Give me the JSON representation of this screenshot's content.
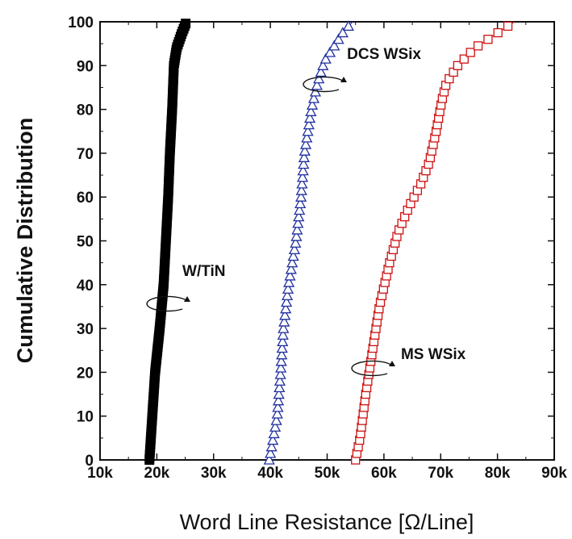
{
  "chart_data": {
    "type": "scatter",
    "title": "",
    "xlabel": "Word Line Resistance [Ω/Line]",
    "ylabel": "Cumulative Distribution",
    "xlim": [
      10000,
      90000
    ],
    "ylim": [
      0,
      100
    ],
    "x_ticks": [
      10000,
      20000,
      30000,
      40000,
      50000,
      60000,
      70000,
      80000,
      90000
    ],
    "x_tick_labels": [
      "10k",
      "20k",
      "30k",
      "40k",
      "50k",
      "60k",
      "70k",
      "80k",
      "90k"
    ],
    "y_ticks": [
      0,
      10,
      20,
      30,
      40,
      50,
      60,
      70,
      80,
      90,
      100
    ],
    "y_tick_labels": [
      "0",
      "10",
      "20",
      "30",
      "40",
      "50",
      "60",
      "70",
      "80",
      "90",
      "100"
    ],
    "grid": false,
    "legend": "none",
    "series": [
      {
        "marker": "filled-square",
        "color": "#000000",
        "points": [
          [
            18700,
            0
          ],
          [
            19200,
            10
          ],
          [
            19700,
            20
          ],
          [
            20500,
            30
          ],
          [
            21200,
            40
          ],
          [
            21600,
            50
          ],
          [
            22000,
            60
          ],
          [
            22300,
            70
          ],
          [
            22700,
            80
          ],
          [
            23000,
            90
          ],
          [
            23500,
            94
          ],
          [
            24300,
            97
          ],
          [
            25200,
            100
          ]
        ]
      },
      {
        "marker": "open-triangle",
        "color": "#1f2f9e",
        "points": [
          [
            39800,
            0
          ],
          [
            40500,
            5
          ],
          [
            41200,
            10
          ],
          [
            41800,
            20
          ],
          [
            42300,
            30
          ],
          [
            43200,
            40
          ],
          [
            44500,
            50
          ],
          [
            45400,
            60
          ],
          [
            46000,
            70
          ],
          [
            47200,
            80
          ],
          [
            48300,
            86
          ],
          [
            49500,
            91
          ],
          [
            51500,
            95
          ],
          [
            53000,
            98
          ],
          [
            54500,
            100
          ]
        ]
      },
      {
        "marker": "open-square",
        "color": "#cc1111",
        "points": [
          [
            55000,
            0
          ],
          [
            55800,
            5
          ],
          [
            56800,
            15
          ],
          [
            58000,
            25
          ],
          [
            59200,
            35
          ],
          [
            61000,
            45
          ],
          [
            62500,
            52
          ],
          [
            64500,
            58
          ],
          [
            66500,
            63
          ],
          [
            68000,
            68
          ],
          [
            69200,
            75
          ],
          [
            70200,
            82
          ],
          [
            71000,
            86
          ],
          [
            73000,
            90
          ],
          [
            76000,
            94
          ],
          [
            79500,
            97
          ],
          [
            83000,
            100
          ]
        ]
      }
    ],
    "annotations": [
      {
        "text": "DCS WSix",
        "x": 53500,
        "y": 91.5
      },
      {
        "text": "W/TiN",
        "x": 24500,
        "y": 42
      },
      {
        "text": "MS WSix",
        "x": 63000,
        "y": 23
      }
    ]
  }
}
